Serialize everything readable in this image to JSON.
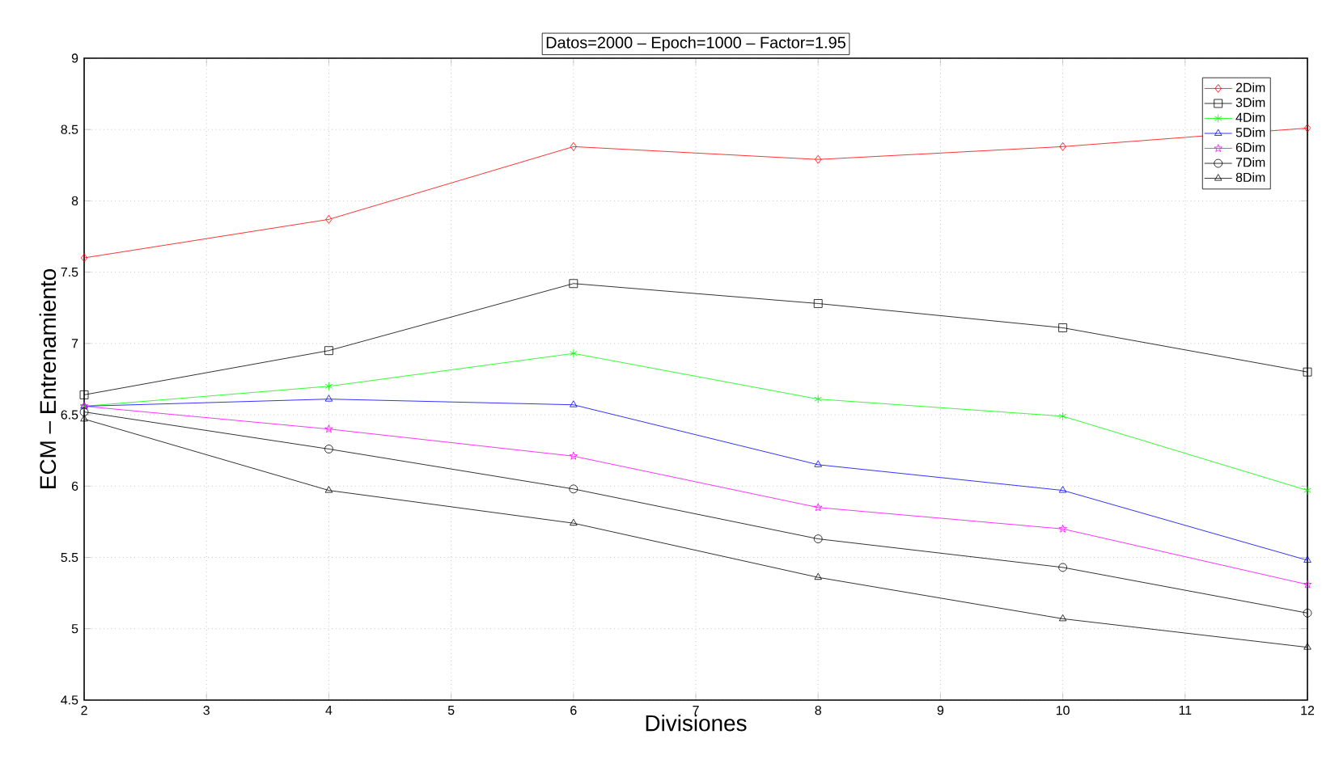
{
  "chart_data": {
    "type": "line",
    "title": "Datos=2000 –  Epoch=1000 – Factor=1.95",
    "xlabel": "Divisiones",
    "ylabel": "ECM – Entrenamiento",
    "x": [
      2,
      4,
      6,
      8,
      10,
      12
    ],
    "series": [
      {
        "name": "2Dim",
        "color": "#ff0000",
        "marker": "diamond",
        "values": [
          7.6,
          7.87,
          8.38,
          8.29,
          8.38,
          8.51
        ]
      },
      {
        "name": "3Dim",
        "color": "#000000",
        "marker": "square",
        "values": [
          6.64,
          6.95,
          7.42,
          7.28,
          7.11,
          6.8
        ]
      },
      {
        "name": "4Dim",
        "color": "#00ff00",
        "marker": "cross",
        "values": [
          6.56,
          6.7,
          6.93,
          6.61,
          6.49,
          5.97
        ]
      },
      {
        "name": "5Dim",
        "color": "#0000ff",
        "marker": "triangle",
        "values": [
          6.56,
          6.61,
          6.57,
          6.15,
          5.97,
          5.48
        ]
      },
      {
        "name": "6Dim",
        "color": "#ff00ff",
        "marker": "star",
        "values": [
          6.56,
          6.4,
          6.21,
          5.85,
          5.7,
          5.31
        ]
      },
      {
        "name": "7Dim",
        "color": "#000000",
        "marker": "circle",
        "values": [
          6.52,
          6.26,
          5.98,
          5.63,
          5.43,
          5.11
        ]
      },
      {
        "name": "8Dim",
        "color": "#000000",
        "marker": "triangle",
        "values": [
          6.47,
          5.97,
          5.74,
          5.36,
          5.07,
          4.87
        ]
      }
    ],
    "xlim": [
      2,
      12
    ],
    "xticks": [
      2,
      3,
      4,
      5,
      6,
      7,
      8,
      9,
      10,
      11,
      12
    ],
    "ylim": [
      4.5,
      9
    ],
    "yticks": [
      4.5,
      5,
      5.5,
      6,
      6.5,
      7,
      7.5,
      8,
      8.5,
      9
    ],
    "grid": true,
    "legend": "top right",
    "line_style": "solid"
  }
}
